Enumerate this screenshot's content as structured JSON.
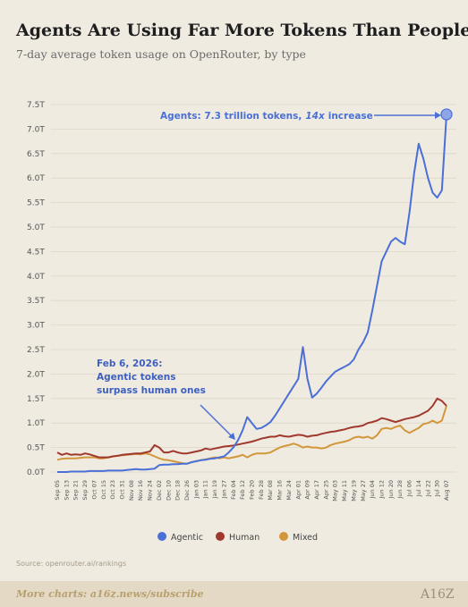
{
  "chart_data": {
    "type": "line",
    "title": "Agents Are Using Far More Tokens Than People",
    "subtitle": "7-day average token usage on OpenRouter, by type",
    "categories": [
      "Sep 05",
      null,
      "Sep 13",
      null,
      "Sep 21",
      null,
      "Sep 29",
      null,
      "Oct 07",
      null,
      "Oct 15",
      null,
      "Oct 23",
      null,
      "Oct 31",
      null,
      "Nov 08",
      null,
      "Nov 16",
      null,
      "Nov 24",
      null,
      "Dec 02",
      null,
      "Dec 10",
      null,
      "Dec 18",
      null,
      "Dec 26",
      null,
      "Jan 03",
      null,
      "Jan 11",
      null,
      "Jan 19",
      null,
      "Jan 27",
      null,
      "Feb 04",
      null,
      "Feb 12",
      null,
      "Feb 20",
      null,
      "Feb 28",
      null,
      "Mar 08",
      null,
      "Mar 16",
      null,
      "Mar 24",
      null,
      "Apr 01",
      null,
      "Apr 09",
      null,
      "Apr 17",
      null,
      "Apr 25",
      null,
      "May 03",
      null,
      "May 11",
      null,
      "May 19",
      null,
      "May 27",
      null,
      "Jun 04",
      null,
      "Jun 12",
      null,
      "Jun 20",
      null,
      "Jun 28",
      null,
      "Jul 06",
      null,
      "Jul 14",
      null,
      "Jul 22",
      null,
      "Jul 30",
      null,
      "Aug 07"
    ],
    "series": [
      {
        "name": "Agentic",
        "color": "#4a6fd6",
        "values": [
          0.0,
          0.0,
          0.0,
          0.01,
          0.01,
          0.01,
          0.01,
          0.02,
          0.02,
          0.02,
          0.02,
          0.03,
          0.03,
          0.03,
          0.03,
          0.04,
          0.05,
          0.06,
          0.05,
          0.05,
          0.06,
          0.07,
          0.14,
          0.15,
          0.15,
          0.16,
          0.16,
          0.17,
          0.17,
          0.2,
          0.22,
          0.24,
          0.25,
          0.27,
          0.28,
          0.3,
          0.32,
          0.4,
          0.5,
          0.65,
          0.85,
          1.12,
          1.0,
          0.88,
          0.9,
          0.95,
          1.02,
          1.15,
          1.3,
          1.45,
          1.6,
          1.75,
          1.9,
          2.55,
          1.9,
          1.52,
          1.6,
          1.72,
          1.85,
          1.95,
          2.05,
          2.1,
          2.15,
          2.2,
          2.3,
          2.5,
          2.65,
          2.85,
          3.3,
          3.8,
          4.3,
          4.5,
          4.7,
          4.78,
          4.7,
          4.65,
          5.3,
          6.1,
          6.7,
          6.4,
          6.0,
          5.7,
          5.6,
          5.75,
          7.3
        ]
      },
      {
        "name": "Human",
        "color": "#a0392d",
        "values": [
          0.4,
          0.35,
          0.38,
          0.35,
          0.36,
          0.35,
          0.38,
          0.36,
          0.33,
          0.3,
          0.3,
          0.3,
          0.32,
          0.33,
          0.35,
          0.36,
          0.37,
          0.38,
          0.38,
          0.4,
          0.42,
          0.55,
          0.5,
          0.4,
          0.4,
          0.43,
          0.4,
          0.38,
          0.38,
          0.4,
          0.42,
          0.44,
          0.48,
          0.46,
          0.48,
          0.5,
          0.52,
          0.53,
          0.54,
          0.56,
          0.58,
          0.6,
          0.62,
          0.65,
          0.68,
          0.7,
          0.72,
          0.72,
          0.75,
          0.73,
          0.72,
          0.74,
          0.76,
          0.75,
          0.72,
          0.74,
          0.75,
          0.78,
          0.8,
          0.82,
          0.83,
          0.85,
          0.87,
          0.9,
          0.92,
          0.93,
          0.95,
          1.0,
          1.02,
          1.05,
          1.1,
          1.08,
          1.05,
          1.02,
          1.05,
          1.08,
          1.1,
          1.12,
          1.15,
          1.2,
          1.25,
          1.35,
          1.5,
          1.45,
          1.35
        ]
      },
      {
        "name": "Mixed",
        "color": "#d1973a",
        "values": [
          0.25,
          0.27,
          0.28,
          0.28,
          0.28,
          0.29,
          0.3,
          0.3,
          0.3,
          0.28,
          0.28,
          0.3,
          0.32,
          0.33,
          0.34,
          0.35,
          0.36,
          0.37,
          0.36,
          0.38,
          0.36,
          0.32,
          0.28,
          0.25,
          0.24,
          0.22,
          0.2,
          0.18,
          0.17,
          0.2,
          0.22,
          0.24,
          0.26,
          0.28,
          0.3,
          0.28,
          0.3,
          0.28,
          0.3,
          0.32,
          0.35,
          0.3,
          0.35,
          0.38,
          0.38,
          0.38,
          0.4,
          0.45,
          0.5,
          0.53,
          0.55,
          0.58,
          0.55,
          0.5,
          0.52,
          0.5,
          0.5,
          0.48,
          0.5,
          0.55,
          0.58,
          0.6,
          0.62,
          0.65,
          0.7,
          0.72,
          0.7,
          0.72,
          0.68,
          0.75,
          0.88,
          0.9,
          0.88,
          0.92,
          0.95,
          0.85,
          0.8,
          0.85,
          0.9,
          0.98,
          1.0,
          1.05,
          1.0,
          1.05,
          1.35
        ]
      }
    ],
    "ylim": [
      0,
      7.5
    ],
    "yticks": [
      {
        "value": 0,
        "label": "0.0T"
      },
      {
        "value": 0.5,
        "label": "0.5T"
      },
      {
        "value": 1,
        "label": "1.0T"
      },
      {
        "value": 1.5,
        "label": "1.5T"
      },
      {
        "value": 2,
        "label": "2.0T"
      },
      {
        "value": 2.5,
        "label": "2.5T"
      },
      {
        "value": 3,
        "label": "3.0T"
      },
      {
        "value": 3.5,
        "label": "3.5T"
      },
      {
        "value": 4,
        "label": "4.0T"
      },
      {
        "value": 4.5,
        "label": "4.5T"
      },
      {
        "value": 5,
        "label": "5.0T"
      },
      {
        "value": 5.5,
        "label": "5.5T"
      },
      {
        "value": 6,
        "label": "6.0T"
      },
      {
        "value": 6.5,
        "label": "6.5T"
      },
      {
        "value": 7,
        "label": "7.0T"
      },
      {
        "value": 7.5,
        "label": "7.5T"
      }
    ],
    "grid": true,
    "legend": "bottom",
    "annotations": [
      {
        "parts": [
          "Agents: 7.3 trillion tokens,",
          "14x",
          "increase"
        ]
      },
      {
        "lines": [
          "Feb 6, 2026:",
          "Agentic tokens",
          "surpass human ones"
        ]
      }
    ],
    "source": "Source: openrouter.ai/rankings",
    "footer": "More charts: a16z.news/subscribe",
    "logo": "A16Z"
  }
}
